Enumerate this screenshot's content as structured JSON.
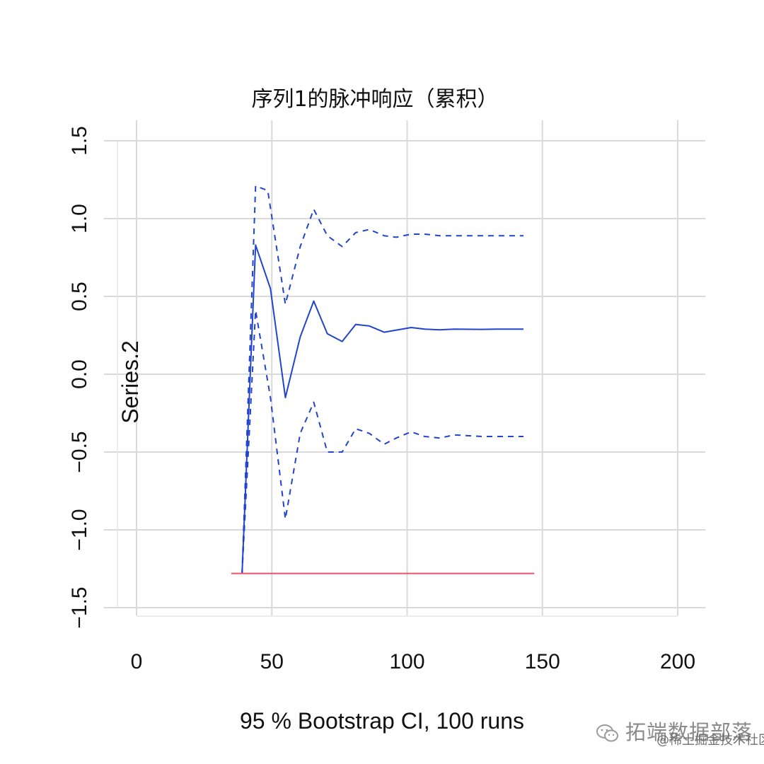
{
  "chart_data": {
    "type": "line",
    "title": "序列1的脉冲响应（累积）",
    "xlabel": "95 % Bootstrap CI,  100 runs",
    "ylabel": "Series.2",
    "xlim": [
      -7,
      210
    ],
    "ylim": [
      -1.5,
      1.6
    ],
    "x_ticks": [
      0,
      50,
      100,
      150,
      200
    ],
    "x_tick_labels": [
      "0",
      "50",
      "100",
      "150",
      "200"
    ],
    "y_ticks": [
      -1.5,
      -1.0,
      -0.5,
      0.0,
      0.5,
      1.0,
      1.5
    ],
    "y_tick_labels": [
      "−1.5",
      "−1.0",
      "−0.5",
      "0.0",
      "0.5",
      "1.0",
      "1.5"
    ],
    "grid": true,
    "series": [
      {
        "style": "solid",
        "color": "#2244cc",
        "x": [
          39,
          44,
          49.5,
          55,
          60.5,
          65.5,
          70.5,
          76,
          81,
          86,
          91.5,
          101.5,
          106.5,
          112,
          117.5,
          127.5,
          133,
          143
        ],
        "values": [
          -1.28,
          0.83,
          0.55,
          -0.15,
          0.24,
          0.47,
          0.26,
          0.21,
          0.32,
          0.31,
          0.27,
          0.3,
          0.29,
          0.285,
          0.29,
          0.288,
          0.29,
          0.29
        ]
      },
      {
        "style": "dashed",
        "color": "#2244cc",
        "x": [
          39,
          44,
          48.5,
          55,
          60.5,
          65.5,
          70.5,
          76,
          81,
          86,
          91.5,
          96,
          101.5,
          106.5,
          112,
          117.5,
          127.5,
          133,
          143
        ],
        "values": [
          -1.28,
          1.21,
          1.18,
          0.45,
          0.82,
          1.06,
          0.89,
          0.82,
          0.91,
          0.93,
          0.89,
          0.88,
          0.9,
          0.9,
          0.89,
          0.89,
          0.89,
          0.89,
          0.89
        ]
      },
      {
        "style": "dashed",
        "color": "#2244cc",
        "x": [
          39,
          44,
          49.5,
          55,
          60.5,
          65.5,
          70.5,
          76,
          81,
          86,
          91.5,
          96,
          101.5,
          106.5,
          112,
          117.5,
          127.5,
          133,
          143
        ],
        "values": [
          -1.28,
          0.41,
          -0.15,
          -0.93,
          -0.38,
          -0.18,
          -0.5,
          -0.5,
          -0.35,
          -0.38,
          -0.45,
          -0.41,
          -0.37,
          -0.4,
          -0.41,
          -0.39,
          -0.4,
          -0.4,
          -0.4
        ]
      }
    ],
    "reference_line": {
      "value": -1.28,
      "x": [
        35,
        147
      ],
      "color": "#e8536a"
    }
  },
  "watermark": {
    "main": "拓端数据部落",
    "sub": "@稀土掘金技术社区"
  }
}
